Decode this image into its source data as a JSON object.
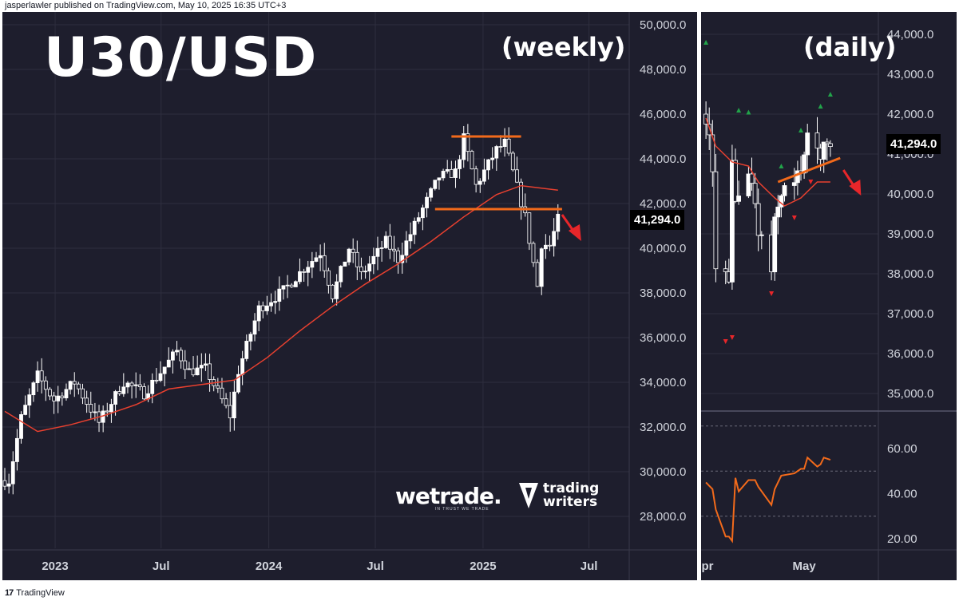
{
  "header": {
    "attribution": "jasperlawler published on TradingView.com, May 10, 2025 16:35 UTC+3"
  },
  "footer": {
    "logo_icon": "tradingview-logo-icon",
    "brand": "TradingView"
  },
  "colors": {
    "background": "#1e1e2d",
    "candle_up": "#ffffff",
    "candle_down": "#ffffff",
    "moving_average": "#e8402f",
    "annotation_line": "#f26a1b",
    "arrow": "#e8262a",
    "rsi_line": "#f26a1b",
    "marker_up": "#22a34a",
    "marker_down": "#e8262a",
    "axis_text": "#d1d4dc",
    "grid": "#2e2e3e"
  },
  "weekly": {
    "title": "U30/USD",
    "subtitle": "(weekly)",
    "price_label": "41,294.0",
    "y_ticks": [
      "50,000.0",
      "48,000.0",
      "46,000.0",
      "44,000.0",
      "42,000.0",
      "40,000.0",
      "38,000.0",
      "36,000.0",
      "34,000.0",
      "32,000.0",
      "30,000.0",
      "28,000.0"
    ],
    "x_ticks": [
      "2023",
      "Jul",
      "2024",
      "Jul",
      "2025",
      "Jul"
    ]
  },
  "daily": {
    "subtitle": "(daily)",
    "price_label": "41,294.0",
    "y_ticks": [
      "44,000.0",
      "43,000.0",
      "42,000.0",
      "41,000.0",
      "40,000.0",
      "39,000.0",
      "38,000.0",
      "37,000.0",
      "36,000.0",
      "35,000.0"
    ],
    "x_ticks": [
      "pr",
      "May"
    ],
    "rsi_ticks": [
      "60.00",
      "40.00",
      "20.00"
    ]
  },
  "logos": {
    "wetrade": "wetrade.",
    "wetrade_tagline": "IN TRUST WE TRADE",
    "trading_writers_line1": "trading",
    "trading_writers_line2": "writers"
  },
  "chart_data": [
    {
      "type": "candlestick",
      "title": "U30/USD",
      "subtitle": "(weekly)",
      "symbol": "U30/USD",
      "timeframe": "weekly",
      "x_range": [
        "2022-10",
        "2025-05"
      ],
      "ylim": [
        26500,
        50500
      ],
      "grid": true,
      "last_price": 41294.0,
      "close_path": [
        {
          "t": "2022-10-14",
          "c": 29600
        },
        {
          "t": "2022-11-04",
          "c": 32400
        },
        {
          "t": "2022-12-02",
          "c": 34300
        },
        {
          "t": "2022-12-30",
          "c": 33200
        },
        {
          "t": "2023-02-03",
          "c": 34000
        },
        {
          "t": "2023-03-17",
          "c": 32200
        },
        {
          "t": "2023-04-28",
          "c": 34000
        },
        {
          "t": "2023-06-02",
          "c": 33500
        },
        {
          "t": "2023-07-28",
          "c": 35400
        },
        {
          "t": "2023-08-18",
          "c": 34500
        },
        {
          "t": "2023-09-15",
          "c": 34600
        },
        {
          "t": "2023-10-27",
          "c": 32500
        },
        {
          "t": "2023-11-10",
          "c": 34500
        },
        {
          "t": "2023-12-15",
          "c": 37300
        },
        {
          "t": "2024-01-26",
          "c": 38100
        },
        {
          "t": "2024-03-01",
          "c": 39100
        },
        {
          "t": "2024-03-29",
          "c": 39800
        },
        {
          "t": "2024-04-19",
          "c": 37900
        },
        {
          "t": "2024-05-17",
          "c": 40000
        },
        {
          "t": "2024-06-07",
          "c": 38800
        },
        {
          "t": "2024-07-19",
          "c": 40300
        },
        {
          "t": "2024-08-09",
          "c": 39500
        },
        {
          "t": "2024-09-13",
          "c": 41400
        },
        {
          "t": "2024-10-18",
          "c": 43200
        },
        {
          "t": "2024-11-15",
          "c": 43400
        },
        {
          "t": "2024-11-29",
          "c": 44900
        },
        {
          "t": "2024-12-20",
          "c": 42800
        },
        {
          "t": "2025-01-24",
          "c": 44400
        },
        {
          "t": "2025-02-07",
          "c": 44700
        },
        {
          "t": "2025-02-21",
          "c": 43400
        },
        {
          "t": "2025-03-14",
          "c": 41400
        },
        {
          "t": "2025-04-04",
          "c": 38300
        },
        {
          "t": "2025-04-11",
          "c": 40200
        },
        {
          "t": "2025-04-25",
          "c": 40100
        },
        {
          "t": "2025-05-09",
          "c": 41294
        }
      ],
      "moving_average": [
        {
          "t": "2022-10-07",
          "v": 32700
        },
        {
          "t": "2022-12-02",
          "v": 31800
        },
        {
          "t": "2023-01-27",
          "v": 32100
        },
        {
          "t": "2023-03-24",
          "v": 32500
        },
        {
          "t": "2023-05-19",
          "v": 33000
        },
        {
          "t": "2023-07-14",
          "v": 33700
        },
        {
          "t": "2023-09-08",
          "v": 33900
        },
        {
          "t": "2023-11-03",
          "v": 34100
        },
        {
          "t": "2023-12-29",
          "v": 35100
        },
        {
          "t": "2024-02-23",
          "v": 36300
        },
        {
          "t": "2024-04-19",
          "v": 37400
        },
        {
          "t": "2024-06-14",
          "v": 38400
        },
        {
          "t": "2024-08-09",
          "v": 39300
        },
        {
          "t": "2024-10-04",
          "v": 40300
        },
        {
          "t": "2024-11-29",
          "v": 41400
        },
        {
          "t": "2025-01-24",
          "v": 42400
        },
        {
          "t": "2025-03-07",
          "v": 42800
        },
        {
          "t": "2025-05-09",
          "v": 42600
        }
      ],
      "annotations": [
        {
          "type": "horizontal-line",
          "name": "resistance",
          "y": 45000,
          "x": [
            "2024-11-08",
            "2025-03-07"
          ]
        },
        {
          "type": "horizontal-line",
          "name": "neckline",
          "y": 41750,
          "x": [
            "2024-10-11",
            "2025-05-16"
          ]
        },
        {
          "type": "arrow",
          "direction": "down",
          "near": "2025-06"
        }
      ]
    },
    {
      "type": "candlestick",
      "subtitle": "(daily)",
      "symbol": "U30/USD",
      "timeframe": "daily",
      "x_range": [
        "2025-04-01",
        "2025-05-12"
      ],
      "ylim": [
        34500,
        44500
      ],
      "grid": true,
      "last_price": 41294.0,
      "close_path": [
        {
          "t": "2025-04-01",
          "c": 42000
        },
        {
          "t": "2025-04-03",
          "c": 40500
        },
        {
          "t": "2025-04-04",
          "c": 38300
        },
        {
          "t": "2025-04-07",
          "c": 37900
        },
        {
          "t": "2025-04-08",
          "c": 37600
        },
        {
          "t": "2025-04-09",
          "c": 40600
        },
        {
          "t": "2025-04-10",
          "c": 39600
        },
        {
          "t": "2025-04-11",
          "c": 40200
        },
        {
          "t": "2025-04-14",
          "c": 40500
        },
        {
          "t": "2025-04-16",
          "c": 39700
        },
        {
          "t": "2025-04-17",
          "c": 39100
        },
        {
          "t": "2025-04-21",
          "c": 38100
        },
        {
          "t": "2025-04-22",
          "c": 39200
        },
        {
          "t": "2025-04-24",
          "c": 40100
        },
        {
          "t": "2025-04-28",
          "c": 40200
        },
        {
          "t": "2025-04-30",
          "c": 40700
        },
        {
          "t": "2025-05-02",
          "c": 41300
        },
        {
          "t": "2025-05-05",
          "c": 41100
        },
        {
          "t": "2025-05-07",
          "c": 41100
        },
        {
          "t": "2025-05-09",
          "c": 41294
        }
      ],
      "moving_average": [
        {
          "t": "2025-04-01",
          "v": 41900
        },
        {
          "t": "2025-04-04",
          "v": 41200
        },
        {
          "t": "2025-04-09",
          "v": 40800
        },
        {
          "t": "2025-04-14",
          "v": 40700
        },
        {
          "t": "2025-04-17",
          "v": 40300
        },
        {
          "t": "2025-04-22",
          "v": 39900
        },
        {
          "t": "2025-04-25",
          "v": 39700
        },
        {
          "t": "2025-04-30",
          "v": 39900
        },
        {
          "t": "2025-05-05",
          "v": 40300
        },
        {
          "t": "2025-05-09",
          "v": 40300
        }
      ],
      "markers_up": [
        {
          "t": "2025-04-01",
          "v": 43800
        },
        {
          "t": "2025-04-11",
          "v": 42100
        },
        {
          "t": "2025-04-14",
          "v": 42050
        },
        {
          "t": "2025-04-24",
          "v": 40700
        },
        {
          "t": "2025-04-30",
          "v": 41600
        },
        {
          "t": "2025-05-06",
          "v": 42200
        },
        {
          "t": "2025-05-09",
          "v": 42500
        }
      ],
      "markers_down": [
        {
          "t": "2025-04-07",
          "v": 36300
        },
        {
          "t": "2025-04-09",
          "v": 36400
        },
        {
          "t": "2025-04-21",
          "v": 37500
        },
        {
          "t": "2025-04-28",
          "v": 39400
        },
        {
          "t": "2025-05-03",
          "v": 40300
        }
      ],
      "annotations": [
        {
          "type": "trendline",
          "name": "rising support",
          "from": {
            "t": "2025-04-23",
            "v": 40300
          },
          "to": {
            "t": "2025-05-12",
            "v": 40900
          }
        },
        {
          "type": "arrow",
          "direction": "down",
          "near": "2025-05-14"
        }
      ]
    },
    {
      "type": "line",
      "name": "rsi",
      "timeframe": "daily",
      "x_range": [
        "2025-04-01",
        "2025-05-12"
      ],
      "ylim": [
        15,
        75
      ],
      "reference_lines": [
        70,
        50,
        30
      ],
      "points": [
        {
          "t": "2025-04-01",
          "v": 45
        },
        {
          "t": "2025-04-03",
          "v": 42
        },
        {
          "t": "2025-04-04",
          "v": 33
        },
        {
          "t": "2025-04-07",
          "v": 21
        },
        {
          "t": "2025-04-08",
          "v": 21
        },
        {
          "t": "2025-04-09",
          "v": 19
        },
        {
          "t": "2025-04-10",
          "v": 47
        },
        {
          "t": "2025-04-11",
          "v": 41
        },
        {
          "t": "2025-04-14",
          "v": 46
        },
        {
          "t": "2025-04-16",
          "v": 46
        },
        {
          "t": "2025-04-17",
          "v": 43
        },
        {
          "t": "2025-04-21",
          "v": 35
        },
        {
          "t": "2025-04-22",
          "v": 42
        },
        {
          "t": "2025-04-24",
          "v": 48
        },
        {
          "t": "2025-04-28",
          "v": 49
        },
        {
          "t": "2025-04-30",
          "v": 51
        },
        {
          "t": "2025-05-01",
          "v": 51
        },
        {
          "t": "2025-05-02",
          "v": 56
        },
        {
          "t": "2025-05-05",
          "v": 52
        },
        {
          "t": "2025-05-06",
          "v": 53
        },
        {
          "t": "2025-05-07",
          "v": 56
        },
        {
          "t": "2025-05-09",
          "v": 55
        }
      ]
    }
  ]
}
